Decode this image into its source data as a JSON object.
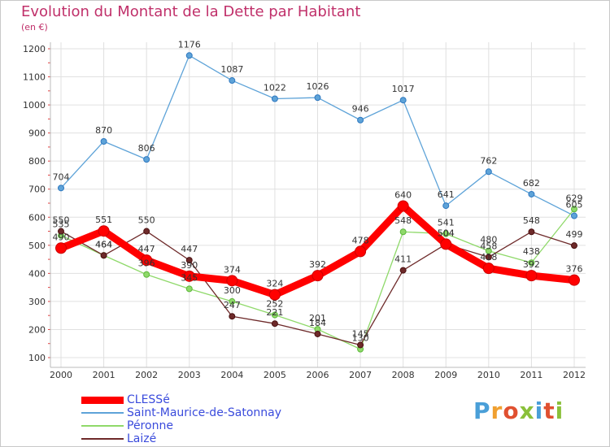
{
  "header": {
    "title": "Evolution du Montant de la Dette par Habitant",
    "subtitle": "(en €)"
  },
  "logo": {
    "text": "Proxiti",
    "colors": [
      "#4a9fd8",
      "#f0a030",
      "#e05030",
      "#8ac03a",
      "#4a9fd8",
      "#e05030",
      "#8ac03a"
    ]
  },
  "chart_data": {
    "type": "line",
    "title": "Evolution du Montant de la Dette par Habitant",
    "ylabel": "(en €)",
    "x": [
      "2000",
      "2001",
      "2002",
      "2003",
      "2004",
      "2005",
      "2006",
      "2007",
      "2008",
      "2009",
      "2010",
      "2011",
      "2012"
    ],
    "yticks": [
      100,
      200,
      300,
      400,
      500,
      600,
      700,
      800,
      900,
      1000,
      1100,
      1200
    ],
    "ylim": [
      100,
      1200
    ],
    "grid": true,
    "legend_position": "bottom-left",
    "series": [
      {
        "name": "CLESSé",
        "color": "#ff0000",
        "values": [
          490,
          551,
          447,
          390,
          374,
          324,
          392,
          478,
          640,
          504,
          418,
          392,
          376
        ]
      },
      {
        "name": "Saint-Maurice-de-Satonnay",
        "color": "#5ea3d8",
        "values": [
          704,
          870,
          806,
          1176,
          1087,
          1022,
          1026,
          946,
          1017,
          641,
          762,
          682,
          605
        ]
      },
      {
        "name": "Péronne",
        "color": "#8fd96a",
        "values": [
          535,
          464,
          396,
          345,
          300,
          252,
          201,
          130,
          548,
          541,
          480,
          438,
          629
        ]
      },
      {
        "name": "Laizé",
        "color": "#6e2a2a",
        "values": [
          550,
          464,
          550,
          447,
          247,
          221,
          184,
          145,
          411,
          504,
          458,
          548,
          499
        ]
      }
    ]
  }
}
